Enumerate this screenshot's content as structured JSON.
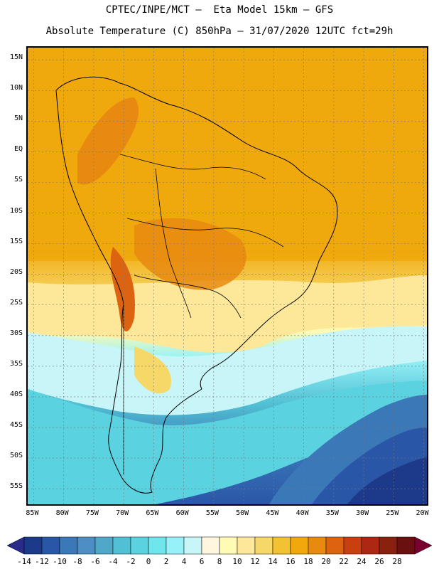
{
  "map": {
    "title_line1": "CPTEC/INPE/MCT –  Eta Model 15km – GFS",
    "title_line2": "Absolute Temperature (C) 850hPa – 31/07/2020 12UTC fct=29h",
    "lat_labels": [
      "15N",
      "10N",
      "5N",
      "EQ",
      "5S",
      "10S",
      "15S",
      "20S",
      "25S",
      "30S",
      "35S",
      "40S",
      "45S",
      "50S",
      "55S"
    ],
    "lon_labels": [
      "85W",
      "80W",
      "75W",
      "70W",
      "65W",
      "60W",
      "55W",
      "50W",
      "45W",
      "40W",
      "35W",
      "30W",
      "25W",
      "20W"
    ],
    "extent": {
      "lon_min": -86,
      "lon_max": -19,
      "lat_max": 17,
      "lat_min": -58
    }
  },
  "colorbar": {
    "labels": [
      "-14",
      "-12",
      "-10",
      "-8",
      "-6",
      "-4",
      "-2",
      "0",
      "2",
      "4",
      "6",
      "8",
      "10",
      "12",
      "14",
      "16",
      "18",
      "20",
      "22",
      "24",
      "26",
      "28"
    ],
    "colors": [
      "#1d3a8a",
      "#2a56a8",
      "#3a78b8",
      "#4d8fc4",
      "#4fa8c8",
      "#52c0d4",
      "#5ad2e0",
      "#6ee6ec",
      "#96f2f8",
      "#c8f5f8",
      "#fff6e0",
      "#fffab4",
      "#fde89a",
      "#f6d868",
      "#f2c232",
      "#f0a80c",
      "#e88a10",
      "#dc6410",
      "#c84010",
      "#ad2812",
      "#8a2010",
      "#6a1010"
    ],
    "low_color": "#2a2a8a",
    "high_color": "#7a0030"
  }
}
